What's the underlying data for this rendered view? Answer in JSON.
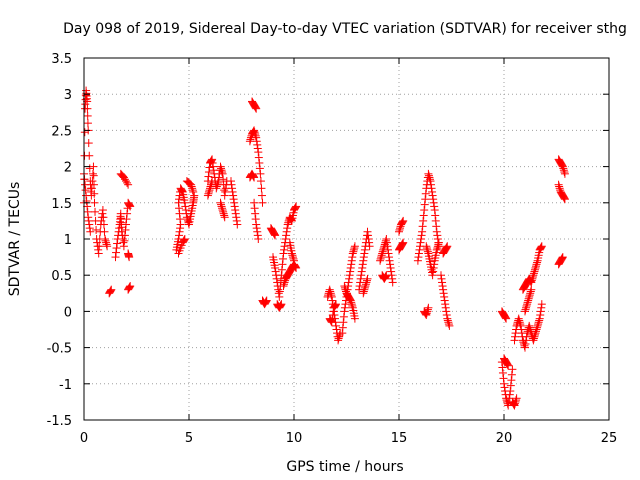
{
  "chart_data": {
    "type": "scatter",
    "title": "Day 098 of 2019, Sidereal Day-to-day VTEC variation (SDTVAR) for receiver sthg",
    "xlabel": "GPS time / hours",
    "ylabel": "SDTVAR / TECUs",
    "xlim": [
      0,
      25
    ],
    "ylim": [
      -1.5,
      3.5
    ],
    "x_ticks": [
      0,
      5,
      10,
      15,
      20,
      25
    ],
    "x_tick_labels": [
      "0",
      "5",
      "10",
      "15",
      "20",
      "25"
    ],
    "y_ticks": [
      -1.5,
      -1,
      -0.5,
      0,
      0.5,
      1,
      1.5,
      2,
      2.5,
      3,
      3.5
    ],
    "y_tick_labels": [
      "-1.5",
      "-1",
      "-0.5",
      "0",
      "0.5",
      "1",
      "1.5",
      "2",
      "2.5",
      "3",
      "3.5"
    ],
    "grid": true,
    "marker": "plus",
    "colors": {
      "series": "#ff0000",
      "grid": "#a0a0a0",
      "axis": "#000000"
    },
    "series": [
      {
        "name": "SDTVAR",
        "segments": [
          [
            [
              0.0,
              1.5
            ],
            [
              0.05,
              2.8
            ],
            [
              0.1,
              3.05
            ],
            [
              0.15,
              2.9
            ],
            [
              0.2,
              2.5
            ],
            [
              0.3,
              1.8
            ],
            [
              0.35,
              1.6
            ],
            [
              0.45,
              2.0
            ],
            [
              0.5,
              1.5
            ],
            [
              0.6,
              1.0
            ],
            [
              0.7,
              0.8
            ],
            [
              0.8,
              1.2
            ],
            [
              0.9,
              1.4
            ],
            [
              1.0,
              1.0
            ],
            [
              1.1,
              0.9
            ]
          ],
          [
            [
              0.0,
              1.9
            ],
            [
              0.1,
              1.6
            ],
            [
              0.2,
              1.3
            ],
            [
              0.3,
              1.1
            ]
          ],
          [
            [
              1.2,
              0.25
            ],
            [
              1.3,
              0.3
            ]
          ],
          [
            [
              1.5,
              0.75
            ],
            [
              1.6,
              1.0
            ],
            [
              1.7,
              1.2
            ],
            [
              1.75,
              1.35
            ],
            [
              1.8,
              1.1
            ],
            [
              1.9,
              0.9
            ],
            [
              2.0,
              1.2
            ],
            [
              2.1,
              1.5
            ],
            [
              2.2,
              1.45
            ]
          ],
          [
            [
              1.75,
              1.9
            ],
            [
              1.9,
              1.85
            ],
            [
              2.1,
              1.75
            ]
          ],
          [
            [
              2.1,
              0.8
            ],
            [
              2.15,
              0.75
            ]
          ],
          [
            [
              2.1,
              0.3
            ],
            [
              2.2,
              0.35
            ]
          ],
          [
            [
              4.4,
              0.85
            ],
            [
              4.5,
              1.0
            ],
            [
              4.6,
              1.2
            ],
            [
              4.5,
              1.5
            ],
            [
              4.6,
              1.7
            ],
            [
              4.7,
              1.65
            ],
            [
              4.8,
              1.5
            ],
            [
              4.9,
              1.3
            ],
            [
              5.0,
              1.2
            ],
            [
              5.1,
              1.35
            ],
            [
              5.2,
              1.5
            ],
            [
              5.25,
              1.6
            ]
          ],
          [
            [
              4.5,
              0.8
            ],
            [
              4.7,
              0.95
            ],
            [
              4.8,
              1.0
            ]
          ],
          [
            [
              4.9,
              1.8
            ],
            [
              5.1,
              1.75
            ],
            [
              5.2,
              1.65
            ]
          ],
          [
            [
              5.9,
              1.8
            ],
            [
              6.0,
              2.05
            ],
            [
              6.1,
              2.1
            ],
            [
              6.2,
              1.9
            ],
            [
              6.3,
              1.7
            ],
            [
              6.4,
              1.8
            ],
            [
              6.5,
              2.0
            ],
            [
              6.6,
              1.9
            ],
            [
              6.7,
              1.6
            ],
            [
              6.8,
              1.8
            ]
          ],
          [
            [
              5.9,
              1.6
            ],
            [
              6.0,
              1.7
            ],
            [
              6.1,
              1.8
            ]
          ],
          [
            [
              6.5,
              1.5
            ],
            [
              6.6,
              1.4
            ],
            [
              6.7,
              1.3
            ]
          ],
          [
            [
              7.0,
              1.8
            ],
            [
              7.1,
              1.6
            ],
            [
              7.2,
              1.4
            ],
            [
              7.3,
              1.2
            ]
          ],
          [
            [
              7.9,
              2.35
            ],
            [
              8.0,
              2.45
            ],
            [
              8.1,
              2.5
            ],
            [
              8.2,
              2.4
            ],
            [
              8.3,
              2.2
            ],
            [
              8.4,
              1.9
            ],
            [
              8.5,
              1.5
            ]
          ],
          [
            [
              8.0,
              2.9
            ],
            [
              8.1,
              2.85
            ],
            [
              8.2,
              2.8
            ]
          ],
          [
            [
              7.9,
              1.85
            ],
            [
              8.0,
              1.9
            ],
            [
              8.1,
              1.85
            ]
          ],
          [
            [
              8.1,
              1.5
            ],
            [
              8.2,
              1.2
            ],
            [
              8.3,
              1.0
            ]
          ],
          [
            [
              8.5,
              0.15
            ],
            [
              8.6,
              0.1
            ],
            [
              8.7,
              0.15
            ]
          ],
          [
            [
              8.9,
              1.15
            ],
            [
              9.0,
              1.1
            ],
            [
              9.1,
              1.05
            ]
          ],
          [
            [
              9.0,
              0.75
            ],
            [
              9.1,
              0.6
            ],
            [
              9.2,
              0.4
            ],
            [
              9.3,
              0.2
            ],
            [
              9.4,
              0.5
            ],
            [
              9.5,
              0.8
            ],
            [
              9.6,
              1.0
            ],
            [
              9.7,
              1.2
            ],
            [
              9.8,
              1.3
            ],
            [
              9.9,
              1.25
            ],
            [
              10.0,
              1.4
            ],
            [
              10.1,
              1.45
            ]
          ],
          [
            [
              9.2,
              0.1
            ],
            [
              9.3,
              0.05
            ],
            [
              9.4,
              0.1
            ]
          ],
          [
            [
              9.5,
              0.35
            ],
            [
              9.6,
              0.45
            ],
            [
              9.7,
              0.5
            ],
            [
              9.8,
              0.55
            ],
            [
              9.9,
              0.6
            ],
            [
              10.0,
              0.65
            ],
            [
              10.1,
              0.6
            ]
          ],
          [
            [
              9.8,
              0.95
            ],
            [
              9.9,
              0.8
            ],
            [
              10.0,
              0.7
            ]
          ],
          [
            [
              11.6,
              0.2
            ],
            [
              11.7,
              0.3
            ],
            [
              11.8,
              0.2
            ],
            [
              11.9,
              0.0
            ],
            [
              12.0,
              -0.2
            ],
            [
              12.1,
              -0.4
            ],
            [
              12.2,
              -0.3
            ]
          ],
          [
            [
              11.7,
              -0.1
            ],
            [
              11.8,
              -0.15
            ],
            [
              11.9,
              0.05
            ],
            [
              12.0,
              0.1
            ]
          ],
          [
            [
              12.3,
              -0.3
            ],
            [
              12.4,
              0.0
            ],
            [
              12.5,
              0.2
            ],
            [
              12.6,
              0.4
            ],
            [
              12.7,
              0.6
            ],
            [
              12.8,
              0.8
            ],
            [
              12.9,
              0.9
            ]
          ],
          [
            [
              12.4,
              0.35
            ],
            [
              12.5,
              0.25
            ],
            [
              12.6,
              0.2
            ],
            [
              12.7,
              0.15
            ],
            [
              12.8,
              0.05
            ],
            [
              12.9,
              -0.1
            ]
          ],
          [
            [
              13.1,
              0.3
            ],
            [
              13.2,
              0.5
            ],
            [
              13.3,
              0.7
            ],
            [
              13.4,
              0.9
            ],
            [
              13.5,
              1.1
            ],
            [
              13.6,
              0.9
            ]
          ],
          [
            [
              13.3,
              0.25
            ],
            [
              13.4,
              0.35
            ],
            [
              13.5,
              0.45
            ]
          ],
          [
            [
              14.1,
              0.7
            ],
            [
              14.2,
              0.8
            ],
            [
              14.3,
              0.9
            ],
            [
              14.4,
              1.0
            ],
            [
              14.5,
              0.8
            ],
            [
              14.6,
              0.6
            ],
            [
              14.7,
              0.4
            ]
          ],
          [
            [
              14.2,
              0.5
            ],
            [
              14.3,
              0.45
            ],
            [
              14.4,
              0.5
            ]
          ],
          [
            [
              15.0,
              0.85
            ],
            [
              15.1,
              0.9
            ],
            [
              15.2,
              0.95
            ]
          ],
          [
            [
              15.0,
              1.1
            ],
            [
              15.1,
              1.2
            ],
            [
              15.2,
              1.25
            ]
          ],
          [
            [
              15.9,
              0.7
            ],
            [
              16.0,
              0.9
            ],
            [
              16.1,
              1.1
            ],
            [
              16.2,
              1.4
            ],
            [
              16.3,
              1.7
            ],
            [
              16.4,
              1.9
            ],
            [
              16.5,
              1.8
            ],
            [
              16.6,
              1.6
            ],
            [
              16.7,
              1.4
            ],
            [
              16.8,
              1.1
            ],
            [
              16.9,
              0.9
            ]
          ],
          [
            [
              16.2,
              0.0
            ],
            [
              16.3,
              -0.05
            ],
            [
              16.4,
              0.05
            ]
          ],
          [
            [
              16.3,
              0.9
            ],
            [
              16.4,
              0.8
            ],
            [
              16.5,
              0.65
            ],
            [
              16.6,
              0.5
            ],
            [
              16.7,
              0.7
            ],
            [
              16.8,
              0.85
            ],
            [
              16.9,
              0.95
            ]
          ],
          [
            [
              17.0,
              0.5
            ],
            [
              17.1,
              0.3
            ],
            [
              17.2,
              0.1
            ],
            [
              17.3,
              -0.1
            ],
            [
              17.4,
              -0.2
            ]
          ],
          [
            [
              17.1,
              0.8
            ],
            [
              17.2,
              0.85
            ],
            [
              17.3,
              0.9
            ]
          ],
          [
            [
              19.9,
              -0.7
            ],
            [
              20.0,
              -1.0
            ],
            [
              20.1,
              -1.2
            ],
            [
              20.2,
              -1.3
            ],
            [
              20.3,
              -1.1
            ],
            [
              20.4,
              -0.8
            ]
          ],
          [
            [
              20.0,
              -0.65
            ],
            [
              20.1,
              -0.7
            ],
            [
              20.2,
              -0.75
            ]
          ],
          [
            [
              19.9,
              0.0
            ],
            [
              20.0,
              -0.05
            ],
            [
              20.1,
              -0.1
            ]
          ],
          [
            [
              20.4,
              -1.25
            ],
            [
              20.5,
              -1.3
            ],
            [
              20.6,
              -1.2
            ]
          ],
          [
            [
              20.5,
              -0.4
            ],
            [
              20.6,
              -0.2
            ],
            [
              20.7,
              -0.1
            ],
            [
              20.8,
              -0.2
            ],
            [
              20.9,
              -0.4
            ],
            [
              21.0,
              -0.5
            ],
            [
              21.1,
              -0.3
            ],
            [
              21.2,
              -0.2
            ],
            [
              21.3,
              -0.3
            ],
            [
              21.4,
              -0.4
            ],
            [
              21.5,
              -0.3
            ],
            [
              21.6,
              -0.2
            ],
            [
              21.7,
              -0.1
            ],
            [
              21.8,
              0.1
            ]
          ],
          [
            [
              20.9,
              0.3
            ],
            [
              21.0,
              0.35
            ],
            [
              21.1,
              0.4
            ],
            [
              21.2,
              0.45
            ],
            [
              21.3,
              0.4
            ],
            [
              21.4,
              0.5
            ],
            [
              21.5,
              0.6
            ],
            [
              21.6,
              0.7
            ],
            [
              21.7,
              0.85
            ],
            [
              21.8,
              0.9
            ]
          ],
          [
            [
              21.0,
              0.0
            ],
            [
              21.1,
              0.1
            ],
            [
              21.2,
              0.2
            ],
            [
              21.3,
              0.3
            ]
          ],
          [
            [
              22.6,
              2.1
            ],
            [
              22.7,
              2.05
            ],
            [
              22.8,
              2.0
            ],
            [
              22.9,
              1.9
            ]
          ],
          [
            [
              22.6,
              1.75
            ],
            [
              22.7,
              1.65
            ],
            [
              22.8,
              1.6
            ],
            [
              22.9,
              1.55
            ]
          ],
          [
            [
              22.6,
              0.65
            ],
            [
              22.7,
              0.7
            ],
            [
              22.8,
              0.75
            ]
          ]
        ]
      }
    ]
  }
}
